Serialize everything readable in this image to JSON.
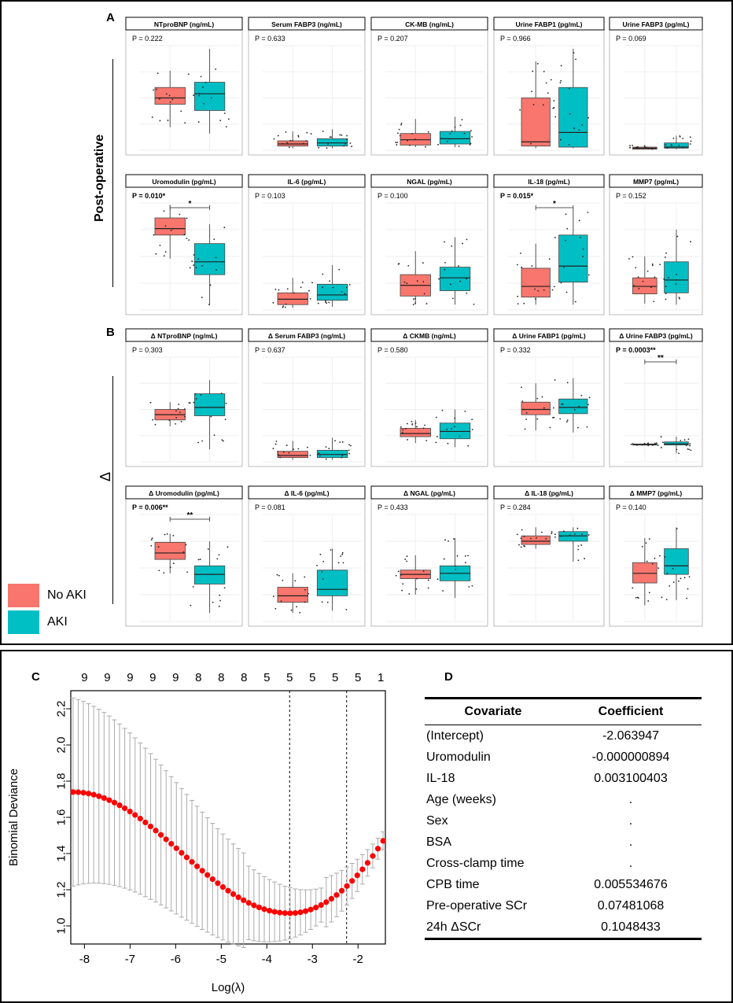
{
  "legend": {
    "no_aki": {
      "label": "No AKI",
      "color": "#F8766D"
    },
    "aki": {
      "label": "AKI",
      "color": "#00BFC4"
    }
  },
  "panel_labels": {
    "a": "A",
    "b": "B",
    "c": "C",
    "d": "D"
  },
  "row_labels": {
    "post": "Post-operative",
    "delta": "Δ"
  },
  "box_panels": [
    {
      "title": "NTproBNP (ng/mL)",
      "p": "P = 0.222",
      "sig": false,
      "noaki": {
        "q1": 0.44,
        "med": 0.5,
        "q3": 0.6,
        "lo": 0.22,
        "hi": 0.76
      },
      "aki": {
        "q1": 0.38,
        "med": 0.54,
        "q3": 0.65,
        "lo": 0.16,
        "hi": 0.97
      }
    },
    {
      "title": "Serum FABP3 (ng/mL)",
      "p": "P = 0.633",
      "sig": false,
      "noaki": {
        "q1": 0.04,
        "med": 0.06,
        "q3": 0.09,
        "lo": 0.02,
        "hi": 0.18
      },
      "aki": {
        "q1": 0.04,
        "med": 0.07,
        "q3": 0.11,
        "lo": 0.02,
        "hi": 0.2
      }
    },
    {
      "title": "CK-MB (ng/mL)",
      "p": "P = 0.207",
      "sig": false,
      "noaki": {
        "q1": 0.05,
        "med": 0.1,
        "q3": 0.16,
        "lo": 0.03,
        "hi": 0.3
      },
      "aki": {
        "q1": 0.06,
        "med": 0.11,
        "q3": 0.18,
        "lo": 0.03,
        "hi": 0.32
      }
    },
    {
      "title": "Urine FABP1 (pg/mL)",
      "p": "P = 0.966",
      "sig": false,
      "noaki": {
        "q1": 0.04,
        "med": 0.08,
        "q3": 0.5,
        "lo": 0.02,
        "hi": 0.85
      },
      "aki": {
        "q1": 0.03,
        "med": 0.17,
        "q3": 0.6,
        "lo": 0.02,
        "hi": 0.97
      }
    },
    {
      "title": "Urine FABP3 (pg/mL)",
      "p": "P = 0.069",
      "sig": false,
      "noaki": {
        "q1": 0.01,
        "med": 0.02,
        "q3": 0.03,
        "lo": 0.01,
        "hi": 0.05
      },
      "aki": {
        "q1": 0.02,
        "med": 0.03,
        "q3": 0.07,
        "lo": 0.01,
        "hi": 0.14
      }
    },
    {
      "title": "Uromodulin (pg/mL)",
      "p": "P = 0.010*",
      "sig": true,
      "stars": "*",
      "noaki": {
        "q1": 0.7,
        "med": 0.76,
        "q3": 0.86,
        "lo": 0.48,
        "hi": 0.98
      },
      "aki": {
        "q1": 0.33,
        "med": 0.45,
        "q3": 0.62,
        "lo": 0.05,
        "hi": 0.8
      }
    },
    {
      "title": "IL-6 (pg/mL)",
      "p": "P = 0.103",
      "sig": false,
      "noaki": {
        "q1": 0.05,
        "med": 0.1,
        "q3": 0.16,
        "lo": 0.02,
        "hi": 0.3
      },
      "aki": {
        "q1": 0.09,
        "med": 0.14,
        "q3": 0.24,
        "lo": 0.03,
        "hi": 0.42
      }
    },
    {
      "title": "NGAL (pg/mL)",
      "p": "P = 0.100",
      "sig": false,
      "noaki": {
        "q1": 0.13,
        "med": 0.23,
        "q3": 0.33,
        "lo": 0.05,
        "hi": 0.55
      },
      "aki": {
        "q1": 0.18,
        "med": 0.3,
        "q3": 0.4,
        "lo": 0.05,
        "hi": 0.68
      }
    },
    {
      "title": "IL-18 (pg/mL)",
      "p": "P = 0.015*",
      "sig": true,
      "stars": "*",
      "noaki": {
        "q1": 0.12,
        "med": 0.22,
        "q3": 0.39,
        "lo": 0.05,
        "hi": 0.62
      },
      "aki": {
        "q1": 0.26,
        "med": 0.41,
        "q3": 0.7,
        "lo": 0.05,
        "hi": 0.94
      }
    },
    {
      "title": "MMP7 (pg/mL)",
      "p": "P = 0.152",
      "sig": false,
      "noaki": {
        "q1": 0.15,
        "med": 0.22,
        "q3": 0.3,
        "lo": 0.06,
        "hi": 0.5
      },
      "aki": {
        "q1": 0.16,
        "med": 0.28,
        "q3": 0.45,
        "lo": 0.05,
        "hi": 0.75
      }
    },
    {
      "title": "Δ NTproBNP (ng/mL)",
      "p": "P = 0.303",
      "sig": false,
      "noaki": {
        "q1": 0.4,
        "med": 0.45,
        "q3": 0.5,
        "lo": 0.34,
        "hi": 0.57
      },
      "aki": {
        "q1": 0.44,
        "med": 0.52,
        "q3": 0.65,
        "lo": 0.12,
        "hi": 0.78
      }
    },
    {
      "title": "Δ Serum FABP3 (ng/mL)",
      "p": "P = 0.637",
      "sig": false,
      "noaki": {
        "q1": 0.04,
        "med": 0.06,
        "q3": 0.1,
        "lo": 0.02,
        "hi": 0.2
      },
      "aki": {
        "q1": 0.04,
        "med": 0.07,
        "q3": 0.11,
        "lo": 0.02,
        "hi": 0.23
      }
    },
    {
      "title": "Δ CKMB (ng/mL)",
      "p": "P = 0.580",
      "sig": false,
      "noaki": {
        "q1": 0.24,
        "med": 0.27,
        "q3": 0.32,
        "lo": 0.18,
        "hi": 0.4
      },
      "aki": {
        "q1": 0.22,
        "med": 0.29,
        "q3": 0.37,
        "lo": 0.14,
        "hi": 0.5
      }
    },
    {
      "title": "Δ Urine FABP1 (pg/mL)",
      "p": "P = 0.332",
      "sig": false,
      "noaki": {
        "q1": 0.45,
        "med": 0.5,
        "q3": 0.57,
        "lo": 0.3,
        "hi": 0.75
      },
      "aki": {
        "q1": 0.46,
        "med": 0.52,
        "q3": 0.6,
        "lo": 0.28,
        "hi": 0.8
      }
    },
    {
      "title": "Δ Urine FABP3 (pg/mL)",
      "p": "P = 0.0003**",
      "sig": true,
      "stars": "**",
      "noaki": {
        "q1": 0.16,
        "med": 0.165,
        "q3": 0.17,
        "lo": 0.155,
        "hi": 0.18
      },
      "aki": {
        "q1": 0.16,
        "med": 0.17,
        "q3": 0.19,
        "lo": 0.08,
        "hi": 0.24
      }
    },
    {
      "title": "Δ Uromodulin (pg/mL)",
      "p": "P = 0.006**",
      "sig": true,
      "stars": "**",
      "noaki": {
        "q1": 0.58,
        "med": 0.64,
        "q3": 0.74,
        "lo": 0.45,
        "hi": 0.82
      },
      "aki": {
        "q1": 0.35,
        "med": 0.44,
        "q3": 0.52,
        "lo": 0.08,
        "hi": 0.75
      }
    },
    {
      "title": "Δ IL-6 (pg/mL)",
      "p": "P = 0.081",
      "sig": false,
      "noaki": {
        "q1": 0.18,
        "med": 0.24,
        "q3": 0.32,
        "lo": 0.08,
        "hi": 0.45
      },
      "aki": {
        "q1": 0.24,
        "med": 0.3,
        "q3": 0.48,
        "lo": 0.1,
        "hi": 0.68
      }
    },
    {
      "title": "Δ NGAL (pg/mL)",
      "p": "P = 0.433",
      "sig": false,
      "noaki": {
        "q1": 0.4,
        "med": 0.44,
        "q3": 0.48,
        "lo": 0.25,
        "hi": 0.62
      },
      "aki": {
        "q1": 0.38,
        "med": 0.45,
        "q3": 0.52,
        "lo": 0.22,
        "hi": 0.78
      }
    },
    {
      "title": "Δ IL-18 (pg/mL)",
      "p": "P = 0.284",
      "sig": false,
      "noaki": {
        "q1": 0.72,
        "med": 0.75,
        "q3": 0.8,
        "lo": 0.68,
        "hi": 0.88
      },
      "aki": {
        "q1": 0.75,
        "med": 0.8,
        "q3": 0.84,
        "lo": 0.56,
        "hi": 0.88
      }
    },
    {
      "title": "Δ MMP7 (pg/mL)",
      "p": "P = 0.140",
      "sig": false,
      "noaki": {
        "q1": 0.36,
        "med": 0.45,
        "q3": 0.55,
        "lo": 0.15,
        "hi": 0.78
      },
      "aki": {
        "q1": 0.44,
        "med": 0.52,
        "q3": 0.68,
        "lo": 0.2,
        "hi": 0.88
      }
    }
  ],
  "chart_data": {
    "type": "line",
    "title": "",
    "xlabel": "Log(λ)",
    "ylabel": "Binomial Deviance",
    "xlim": [
      -8.3,
      -1.4
    ],
    "ylim": [
      0.9,
      2.3
    ],
    "x_ticks": [
      "-8",
      "-7",
      "-6",
      "-5",
      "-4",
      "-3",
      "-2"
    ],
    "y_ticks": [
      "1.0",
      "1.2",
      "1.4",
      "1.6",
      "1.8",
      "2.0",
      "2.2"
    ],
    "top_counts": [
      "9",
      "9",
      "9",
      "9",
      "9",
      "8",
      "8",
      "8",
      "5",
      "5",
      "5",
      "5",
      "5",
      "1"
    ],
    "vlines": [
      -3.5,
      -2.25
    ],
    "x_start": -8.25,
    "x_end": -1.45,
    "n_points": 61,
    "series": [
      {
        "name": "Binomial Deviance (mean ± SE)",
        "color": "#FF0000",
        "min_log_lambda": -3.5,
        "min_value": 1.07,
        "start_value": 1.74,
        "end_value": 1.47,
        "se": 0.52
      }
    ]
  },
  "coef_table": {
    "headers": [
      "Covariate",
      "Coefficient"
    ],
    "rows": [
      [
        "(Intercept)",
        "-2.063947"
      ],
      [
        "Uromodulin",
        "-0.000000894"
      ],
      [
        "IL-18",
        "0.003100403"
      ],
      [
        "Age (weeks)",
        "."
      ],
      [
        "Sex",
        "."
      ],
      [
        "BSA",
        "."
      ],
      [
        "Cross-clamp time",
        "."
      ],
      [
        "CPB time",
        "0.005534676"
      ],
      [
        "Pre-operative SCr",
        "0.07481068"
      ],
      [
        "24h ΔSCr",
        "0.1048433"
      ]
    ]
  }
}
